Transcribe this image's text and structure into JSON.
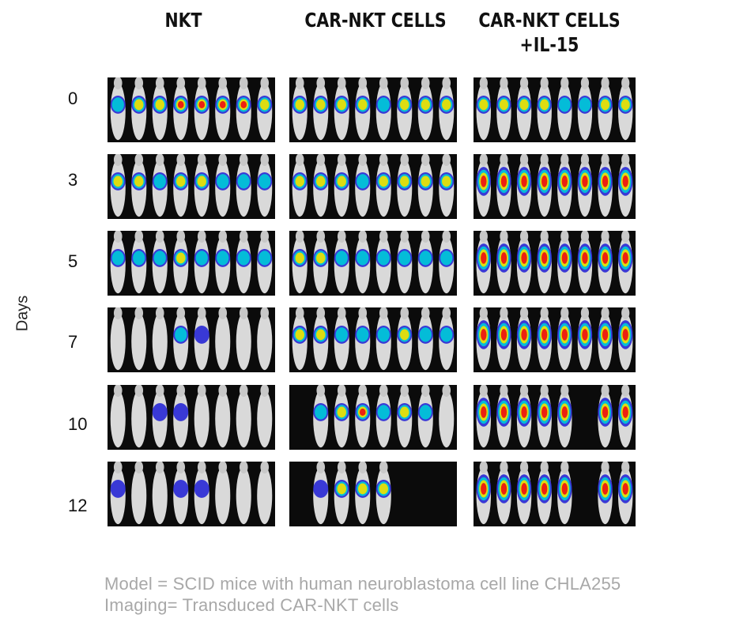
{
  "columns": [
    {
      "title_line1": "NKT",
      "title_line2": ""
    },
    {
      "title_line1": "CAR-NKT CELLS",
      "title_line2": ""
    },
    {
      "title_line1": "CAR-NKT CELLS",
      "title_line2": "+IL-15"
    }
  ],
  "axis_label": "Days",
  "days": [
    "0",
    "3",
    "5",
    "7",
    "10",
    "12"
  ],
  "caption": {
    "line1": "Model = SCID mice with human neuroblastoma cell line CHLA255",
    "line2": "Imaging= Transduced CAR-NKT cells"
  },
  "signal_levels": {
    "description_scale": "0 = none, 1 = blue, 2 = cyan/green, 3 = yellow, 4 = red",
    "nkt": [
      [
        2,
        3,
        3,
        4,
        4,
        4,
        4,
        3
      ],
      [
        3,
        3,
        2,
        3,
        3,
        2,
        2,
        2
      ],
      [
        2,
        2,
        2,
        3,
        2,
        2,
        2,
        2
      ],
      [
        0,
        0,
        0,
        2,
        1,
        0,
        0,
        0
      ],
      [
        0,
        0,
        1,
        1,
        0,
        0,
        0,
        0
      ],
      [
        1,
        0,
        0,
        1,
        1,
        0,
        0,
        0
      ]
    ],
    "car_nkt": [
      [
        3,
        3,
        3,
        3,
        2,
        3,
        3,
        3
      ],
      [
        3,
        3,
        3,
        2,
        3,
        3,
        3,
        3
      ],
      [
        3,
        3,
        2,
        2,
        2,
        2,
        2,
        2
      ],
      [
        3,
        3,
        2,
        2,
        2,
        3,
        2,
        2
      ],
      [
        0,
        2,
        3,
        4,
        2,
        3,
        2,
        0
      ],
      [
        0,
        1,
        3,
        3,
        3,
        0,
        0,
        0
      ]
    ],
    "car_nkt_il15": [
      [
        3,
        3,
        3,
        3,
        2,
        2,
        3,
        3
      ],
      [
        4,
        4,
        4,
        4,
        4,
        4,
        4,
        4
      ],
      [
        4,
        4,
        4,
        4,
        4,
        4,
        4,
        4
      ],
      [
        4,
        4,
        4,
        4,
        4,
        4,
        4,
        4
      ],
      [
        4,
        4,
        4,
        4,
        4,
        0,
        4,
        4
      ],
      [
        4,
        4,
        4,
        4,
        4,
        0,
        4,
        4
      ]
    ]
  },
  "colors": {
    "panel_bg": "#0b0b0b",
    "mouse_body": "#d9d9d9",
    "signal_blue": "#2b2bd6",
    "signal_cyan": "#00c8d8",
    "signal_green": "#20d020",
    "signal_yellow": "#f0e000",
    "signal_red": "#ee1010",
    "caption_text": "#a8a8a8"
  }
}
